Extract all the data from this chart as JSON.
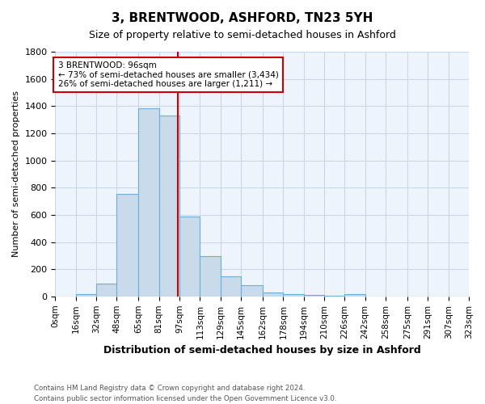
{
  "title": "3, BRENTWOOD, ASHFORD, TN23 5YH",
  "subtitle": "Size of property relative to semi-detached houses in Ashford",
  "xlabel": "Distribution of semi-detached houses by size in Ashford",
  "ylabel": "Number of semi-detached properties",
  "footnote1": "Contains HM Land Registry data © Crown copyright and database right 2024.",
  "footnote2": "Contains public sector information licensed under the Open Government Licence v3.0.",
  "bar_labels": [
    "0sqm",
    "16sqm",
    "32sqm",
    "48sqm",
    "65sqm",
    "81sqm",
    "97sqm",
    "113sqm",
    "129sqm",
    "145sqm",
    "162sqm",
    "178sqm",
    "194sqm",
    "210sqm",
    "226sqm",
    "242sqm",
    "258sqm",
    "275sqm",
    "291sqm",
    "307sqm",
    "323sqm"
  ],
  "bar_values": [
    0,
    15,
    95,
    755,
    1385,
    1330,
    585,
    295,
    150,
    80,
    27,
    15,
    10,
    5,
    15,
    0,
    0,
    0,
    0,
    0,
    0
  ],
  "bar_color": "#c9daea",
  "bar_edge_color": "#6baed6",
  "grid_color": "#c8d8e8",
  "property_line_x": 96,
  "property_line_color": "#cc0000",
  "annotation_text": "3 BRENTWOOD: 96sqm\n← 73% of semi-detached houses are smaller (3,434)\n26% of semi-detached houses are larger (1,211) →",
  "annotation_box_edge_color": "#cc0000",
  "ylim": [
    0,
    1800
  ],
  "background_color": "#ffffff",
  "plot_background_color": "#eef4fb"
}
